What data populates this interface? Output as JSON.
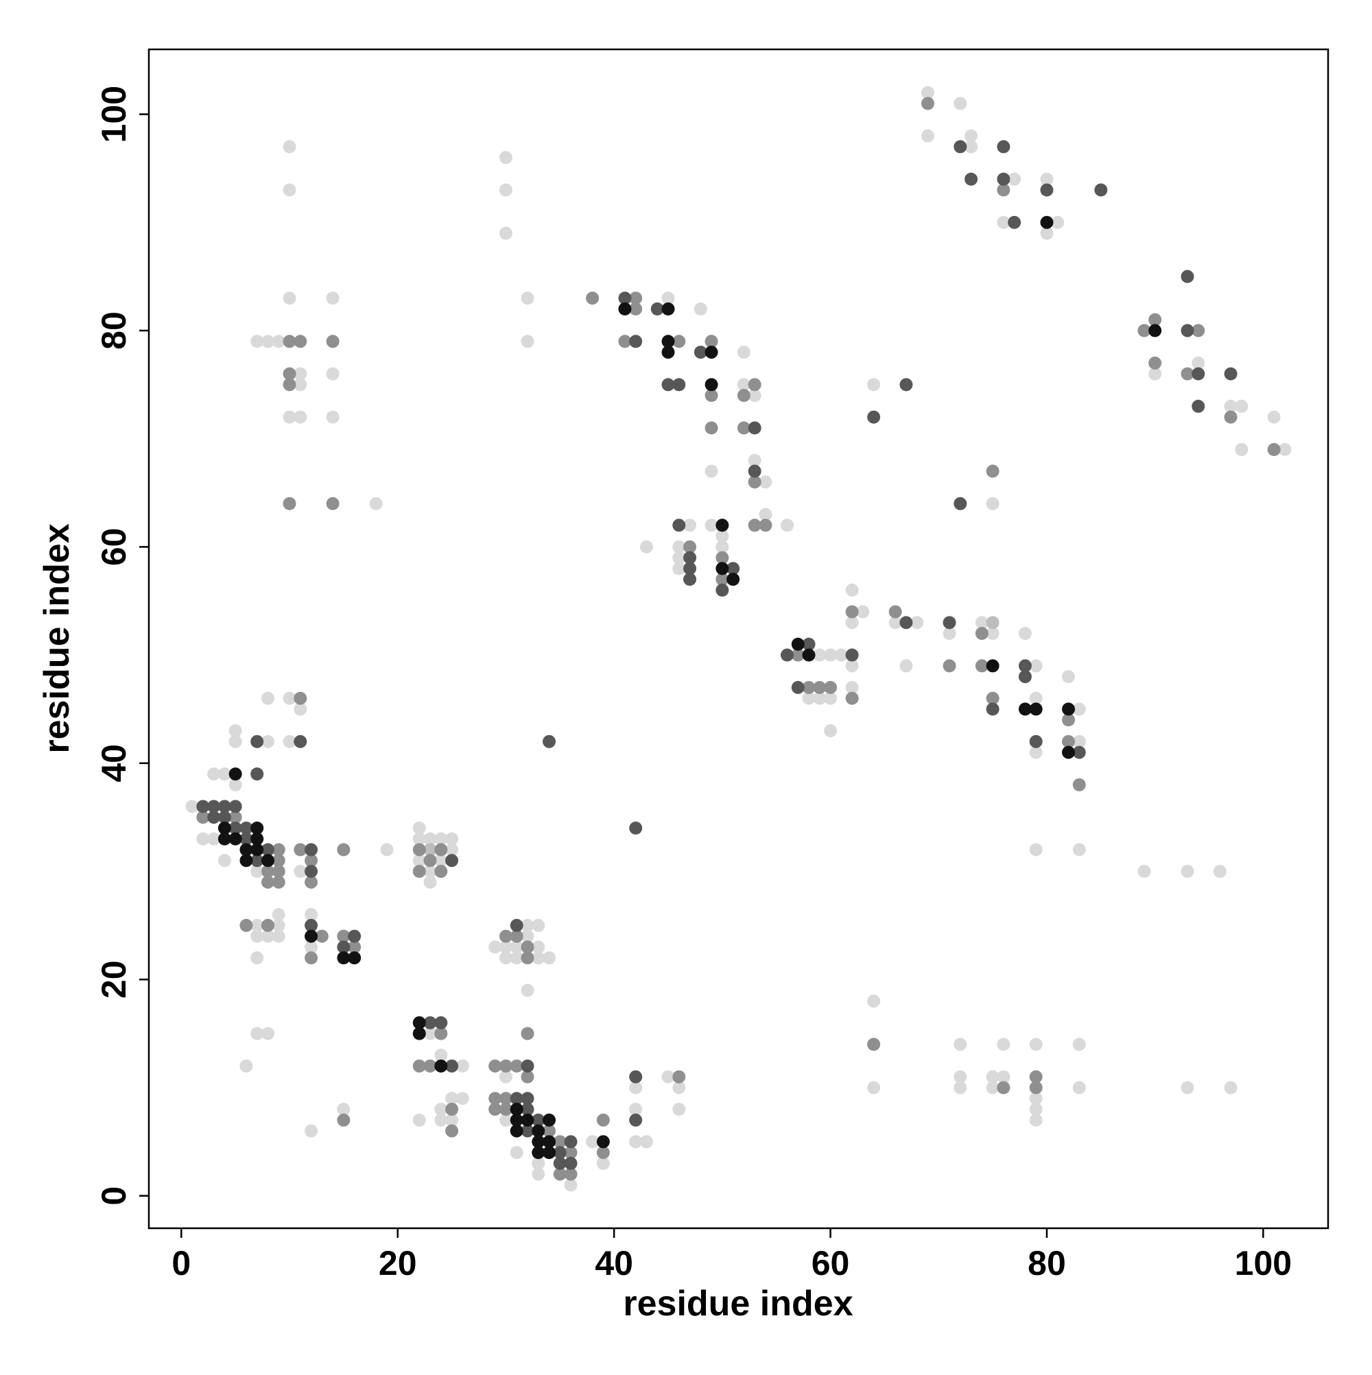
{
  "chart_data": {
    "type": "scatter",
    "xlabel": "residue index",
    "ylabel": "residue index",
    "xlim": [
      -3,
      106
    ],
    "ylim": [
      -3,
      106
    ],
    "xticks": [
      0,
      20,
      40,
      60,
      80,
      100
    ],
    "yticks": [
      0,
      20,
      40,
      60,
      80,
      100
    ],
    "grid": false,
    "series": [
      {
        "color": "#d9d9d9",
        "x": [
          10,
          10,
          10,
          14,
          7,
          8,
          9,
          11,
          14,
          11,
          10,
          11,
          14,
          18,
          30,
          30,
          30,
          32,
          32,
          45,
          48,
          52,
          52,
          53,
          49,
          53,
          54,
          54,
          56,
          47,
          49,
          50,
          46,
          50,
          46,
          43,
          46,
          59,
          60,
          61,
          62,
          62,
          58,
          59,
          60,
          60,
          62,
          63,
          62,
          66,
          68,
          67,
          71,
          74,
          75,
          78,
          79,
          79,
          82,
          83,
          83,
          79,
          69,
          72,
          69,
          73,
          73,
          77,
          80,
          76,
          81,
          80,
          94,
          90,
          97,
          98,
          101,
          98,
          102,
          64,
          75,
          79,
          83,
          89,
          93,
          96,
          64,
          64,
          72,
          72,
          72,
          76,
          75,
          76,
          75,
          79,
          79,
          79,
          79,
          83,
          83,
          93,
          97,
          8,
          10,
          11,
          5,
          5,
          8,
          10,
          3,
          4,
          5,
          1,
          2,
          3,
          19,
          4,
          7,
          11,
          22,
          22,
          23,
          24,
          25,
          25,
          22,
          24,
          23,
          23,
          9,
          7,
          9,
          12,
          7,
          8,
          9,
          12,
          7,
          7,
          8,
          6,
          12,
          15,
          29,
          30,
          32,
          33,
          32,
          31,
          33,
          30,
          31,
          33,
          34,
          32,
          23,
          24,
          26,
          25,
          26,
          24,
          22,
          24,
          25,
          30,
          30,
          31,
          33,
          33,
          36,
          38,
          39,
          42,
          42,
          42,
          43,
          45,
          46,
          46
        ],
        "values": [
          97,
          93,
          83,
          83,
          79,
          79,
          79,
          76,
          76,
          75,
          72,
          72,
          72,
          64,
          96,
          93,
          89,
          83,
          79,
          83,
          82,
          78,
          75,
          74,
          67,
          68,
          66,
          63,
          62,
          62,
          62,
          61,
          60,
          60,
          59,
          60,
          58,
          50,
          50,
          50,
          49,
          47,
          46,
          46,
          46,
          43,
          56,
          54,
          53,
          53,
          53,
          49,
          52,
          53,
          52,
          52,
          49,
          46,
          48,
          45,
          42,
          41,
          102,
          101,
          98,
          98,
          97,
          94,
          94,
          90,
          90,
          89,
          77,
          76,
          73,
          73,
          72,
          69,
          69,
          75,
          64,
          32,
          32,
          30,
          30,
          30,
          18,
          10,
          14,
          11,
          10,
          14,
          11,
          11,
          10,
          14,
          9,
          8,
          7,
          14,
          10,
          10,
          10,
          46,
          46,
          45,
          43,
          42,
          42,
          42,
          39,
          39,
          38,
          36,
          33,
          33,
          32,
          31,
          30,
          30,
          34,
          33,
          33,
          33,
          33,
          32,
          31,
          31,
          30,
          29,
          26,
          25,
          25,
          26,
          24,
          24,
          24,
          23,
          22,
          15,
          15,
          12,
          6,
          8,
          23,
          23,
          25,
          25,
          24,
          23,
          23,
          22,
          22,
          22,
          22,
          19,
          15,
          13,
          12,
          9,
          9,
          8,
          7,
          7,
          7,
          11,
          7,
          4,
          3,
          2,
          1,
          5,
          3,
          10,
          8,
          5,
          5,
          11,
          10,
          8
        ]
      },
      {
        "color": "#bdbdbd",
        "x": [
          75,
          23
        ],
        "values": [
          53,
          32
        ]
      },
      {
        "color": "#8f8f8f",
        "x": [
          10,
          11,
          14,
          10,
          10,
          10,
          14,
          38,
          42,
          42,
          41,
          46,
          49,
          49,
          53,
          52,
          49,
          52,
          53,
          53,
          54,
          47,
          50,
          50,
          57,
          58,
          59,
          60,
          62,
          62,
          66,
          74,
          71,
          74,
          75,
          82,
          82,
          83,
          69,
          76,
          89,
          90,
          94,
          90,
          93,
          97,
          101,
          75,
          64,
          76,
          79,
          79,
          11,
          2,
          5,
          9,
          11,
          15,
          9,
          12,
          8,
          9,
          8,
          9,
          12,
          22,
          24,
          23,
          22,
          24,
          6,
          8,
          13,
          15,
          16,
          12,
          15,
          30,
          31,
          32,
          32,
          32,
          24,
          22,
          23,
          25,
          25,
          29,
          30,
          31,
          32,
          29,
          30,
          29,
          30,
          34,
          35,
          36,
          35,
          36,
          39,
          39,
          46
        ],
        "values": [
          79,
          79,
          79,
          76,
          75,
          64,
          64,
          83,
          83,
          82,
          79,
          79,
          79,
          74,
          75,
          74,
          71,
          71,
          66,
          62,
          62,
          60,
          59,
          57,
          50,
          47,
          47,
          47,
          46,
          54,
          54,
          52,
          49,
          49,
          46,
          44,
          42,
          38,
          101,
          93,
          80,
          81,
          80,
          77,
          76,
          72,
          69,
          67,
          14,
          10,
          11,
          10,
          46,
          35,
          35,
          32,
          32,
          32,
          31,
          31,
          30,
          30,
          29,
          29,
          29,
          32,
          32,
          31,
          30,
          30,
          25,
          25,
          24,
          24,
          23,
          22,
          7,
          24,
          24,
          23,
          22,
          15,
          15,
          12,
          12,
          8,
          6,
          12,
          12,
          12,
          11,
          9,
          9,
          8,
          8,
          6,
          5,
          4,
          2,
          2,
          7,
          4,
          11
        ]
      },
      {
        "color": "#575757",
        "x": [
          41,
          44,
          42,
          48,
          45,
          46,
          53,
          53,
          46,
          47,
          47,
          51,
          47,
          50,
          58,
          56,
          62,
          57,
          67,
          71,
          78,
          78,
          75,
          79,
          83,
          72,
          76,
          73,
          76,
          80,
          85,
          77,
          93,
          93,
          94,
          97,
          94,
          67,
          64,
          72,
          34,
          42,
          7,
          11,
          7,
          2,
          3,
          4,
          5,
          3,
          4,
          5,
          6,
          6,
          8,
          12,
          7,
          12,
          25,
          12,
          16,
          15,
          31,
          23,
          24,
          25,
          32,
          31,
          32,
          32,
          33,
          32,
          36,
          35,
          35,
          36,
          42,
          42
        ],
        "values": [
          83,
          82,
          79,
          78,
          75,
          75,
          71,
          67,
          62,
          59,
          58,
          58,
          57,
          56,
          51,
          50,
          50,
          47,
          53,
          53,
          49,
          48,
          45,
          42,
          41,
          97,
          97,
          94,
          94,
          93,
          93,
          90,
          85,
          80,
          76,
          76,
          73,
          75,
          72,
          64,
          42,
          34,
          42,
          42,
          39,
          36,
          36,
          36,
          36,
          35,
          35,
          34,
          34,
          33,
          32,
          32,
          31,
          30,
          31,
          25,
          24,
          23,
          25,
          16,
          16,
          12,
          12,
          9,
          9,
          8,
          7,
          6,
          5,
          4,
          3,
          3,
          11,
          7
        ]
      },
      {
        "color": "#121212",
        "x": [
          41,
          45,
          45,
          45,
          49,
          49,
          50,
          50,
          51,
          57,
          58,
          75,
          78,
          79,
          82,
          82,
          80,
          90,
          5,
          4,
          7,
          4,
          5,
          7,
          6,
          7,
          6,
          8,
          12,
          15,
          16,
          22,
          22,
          24,
          31,
          31,
          32,
          34,
          31,
          33,
          33,
          34,
          33,
          34,
          39
        ],
        "values": [
          82,
          82,
          79,
          78,
          78,
          75,
          62,
          58,
          57,
          51,
          50,
          49,
          45,
          45,
          45,
          41,
          90,
          80,
          39,
          34,
          34,
          33,
          33,
          33,
          32,
          32,
          31,
          31,
          24,
          22,
          22,
          16,
          15,
          12,
          8,
          7,
          7,
          7,
          6,
          6,
          5,
          5,
          4,
          4,
          5
        ]
      }
    ]
  }
}
